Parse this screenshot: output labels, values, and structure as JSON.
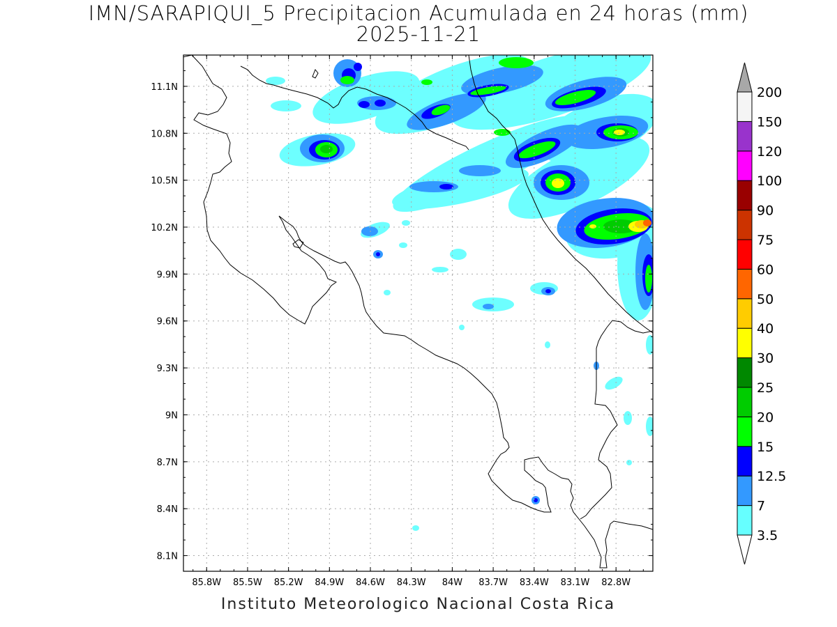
{
  "title_line1": "IMN/SARAPIQUI_5 Precipitacion Acumulada en 24 horas (mm)",
  "title_line2": "2025-11-21",
  "footer": "Instituto Meteorologico Nacional Costa Rica",
  "map": {
    "lon_range": [
      -85.97,
      -82.53
    ],
    "lat_range": [
      8.0,
      11.3
    ],
    "lon_ticks": [
      "85.8W",
      "85.5W",
      "85.2W",
      "84.9W",
      "84.6W",
      "84.3W",
      "84W",
      "83.7W",
      "83.4W",
      "83.1W",
      "82.8W"
    ],
    "lon_tick_values": [
      -85.8,
      -85.5,
      -85.2,
      -84.9,
      -84.6,
      -84.3,
      -84.0,
      -83.7,
      -83.4,
      -83.1,
      -82.8
    ],
    "lat_ticks": [
      "11.1N",
      "10.8N",
      "10.5N",
      "10.2N",
      "9.9N",
      "9.6N",
      "9.3N",
      "9N",
      "8.7N",
      "8.4N",
      "8.1N"
    ],
    "lat_tick_values": [
      11.1,
      10.8,
      10.5,
      10.2,
      9.9,
      9.6,
      9.3,
      9.0,
      8.7,
      8.4,
      8.1
    ],
    "grid": true
  },
  "colorbar": {
    "levels": [
      "3.5",
      "7",
      "12.5",
      "15",
      "20",
      "25",
      "30",
      "40",
      "50",
      "60",
      "75",
      "90",
      "100",
      "120",
      "150",
      "200"
    ],
    "colors": [
      "#66ffff",
      "#3399ff",
      "#0000ff",
      "#00ff00",
      "#00cc00",
      "#008800",
      "#ffff00",
      "#ffcc00",
      "#ff6600",
      "#ff0000",
      "#cc3300",
      "#990000",
      "#ff00ff",
      "#9933cc",
      "#f5f5f5",
      "#a8a8a8"
    ]
  },
  "rain_cells": [
    {
      "lon": -84.93,
      "lat": 10.69,
      "level": 4
    },
    {
      "lon": -84.84,
      "lat": 11.15,
      "level": 3
    },
    {
      "lon": -84.65,
      "lat": 11.02,
      "level": 2
    },
    {
      "lon": -84.22,
      "lat": 11.05,
      "level": 3
    },
    {
      "lon": -84.08,
      "lat": 10.94,
      "level": 3
    },
    {
      "lon": -83.92,
      "lat": 11.17,
      "level": 3
    },
    {
      "lon": -83.62,
      "lat": 11.11,
      "level": 4
    },
    {
      "lon": -83.48,
      "lat": 11.27,
      "level": 3
    },
    {
      "lon": -83.18,
      "lat": 11.06,
      "level": 4
    },
    {
      "lon": -82.82,
      "lat": 11.1,
      "level": 3
    },
    {
      "lon": -83.45,
      "lat": 10.72,
      "level": 3
    },
    {
      "lon": -83.72,
      "lat": 10.82,
      "level": 2
    },
    {
      "lon": -82.86,
      "lat": 10.8,
      "level": 5
    },
    {
      "lon": -83.16,
      "lat": 10.78,
      "level": 2
    },
    {
      "lon": -83.28,
      "lat": 10.52,
      "level": 5
    },
    {
      "lon": -82.96,
      "lat": 10.48,
      "level": 3
    },
    {
      "lon": -82.72,
      "lat": 10.22,
      "level": 7
    },
    {
      "lon": -82.58,
      "lat": 10.17,
      "level": 8
    },
    {
      "lon": -82.95,
      "lat": 10.2,
      "level": 5
    },
    {
      "lon": -82.66,
      "lat": 9.9,
      "level": 3
    },
    {
      "lon": -83.92,
      "lat": 10.5,
      "level": 2
    },
    {
      "lon": -84.12,
      "lat": 10.48,
      "level": 2
    },
    {
      "lon": -84.57,
      "lat": 10.2,
      "level": 2
    },
    {
      "lon": -84.55,
      "lat": 10.03,
      "level": 2
    },
    {
      "lon": -84.33,
      "lat": 9.83,
      "level": 2
    },
    {
      "lon": -83.33,
      "lat": 9.8,
      "level": 2
    },
    {
      "lon": -83.43,
      "lat": 8.45,
      "level": 2
    },
    {
      "lon": -82.99,
      "lat": 9.31,
      "level": 1
    }
  ]
}
